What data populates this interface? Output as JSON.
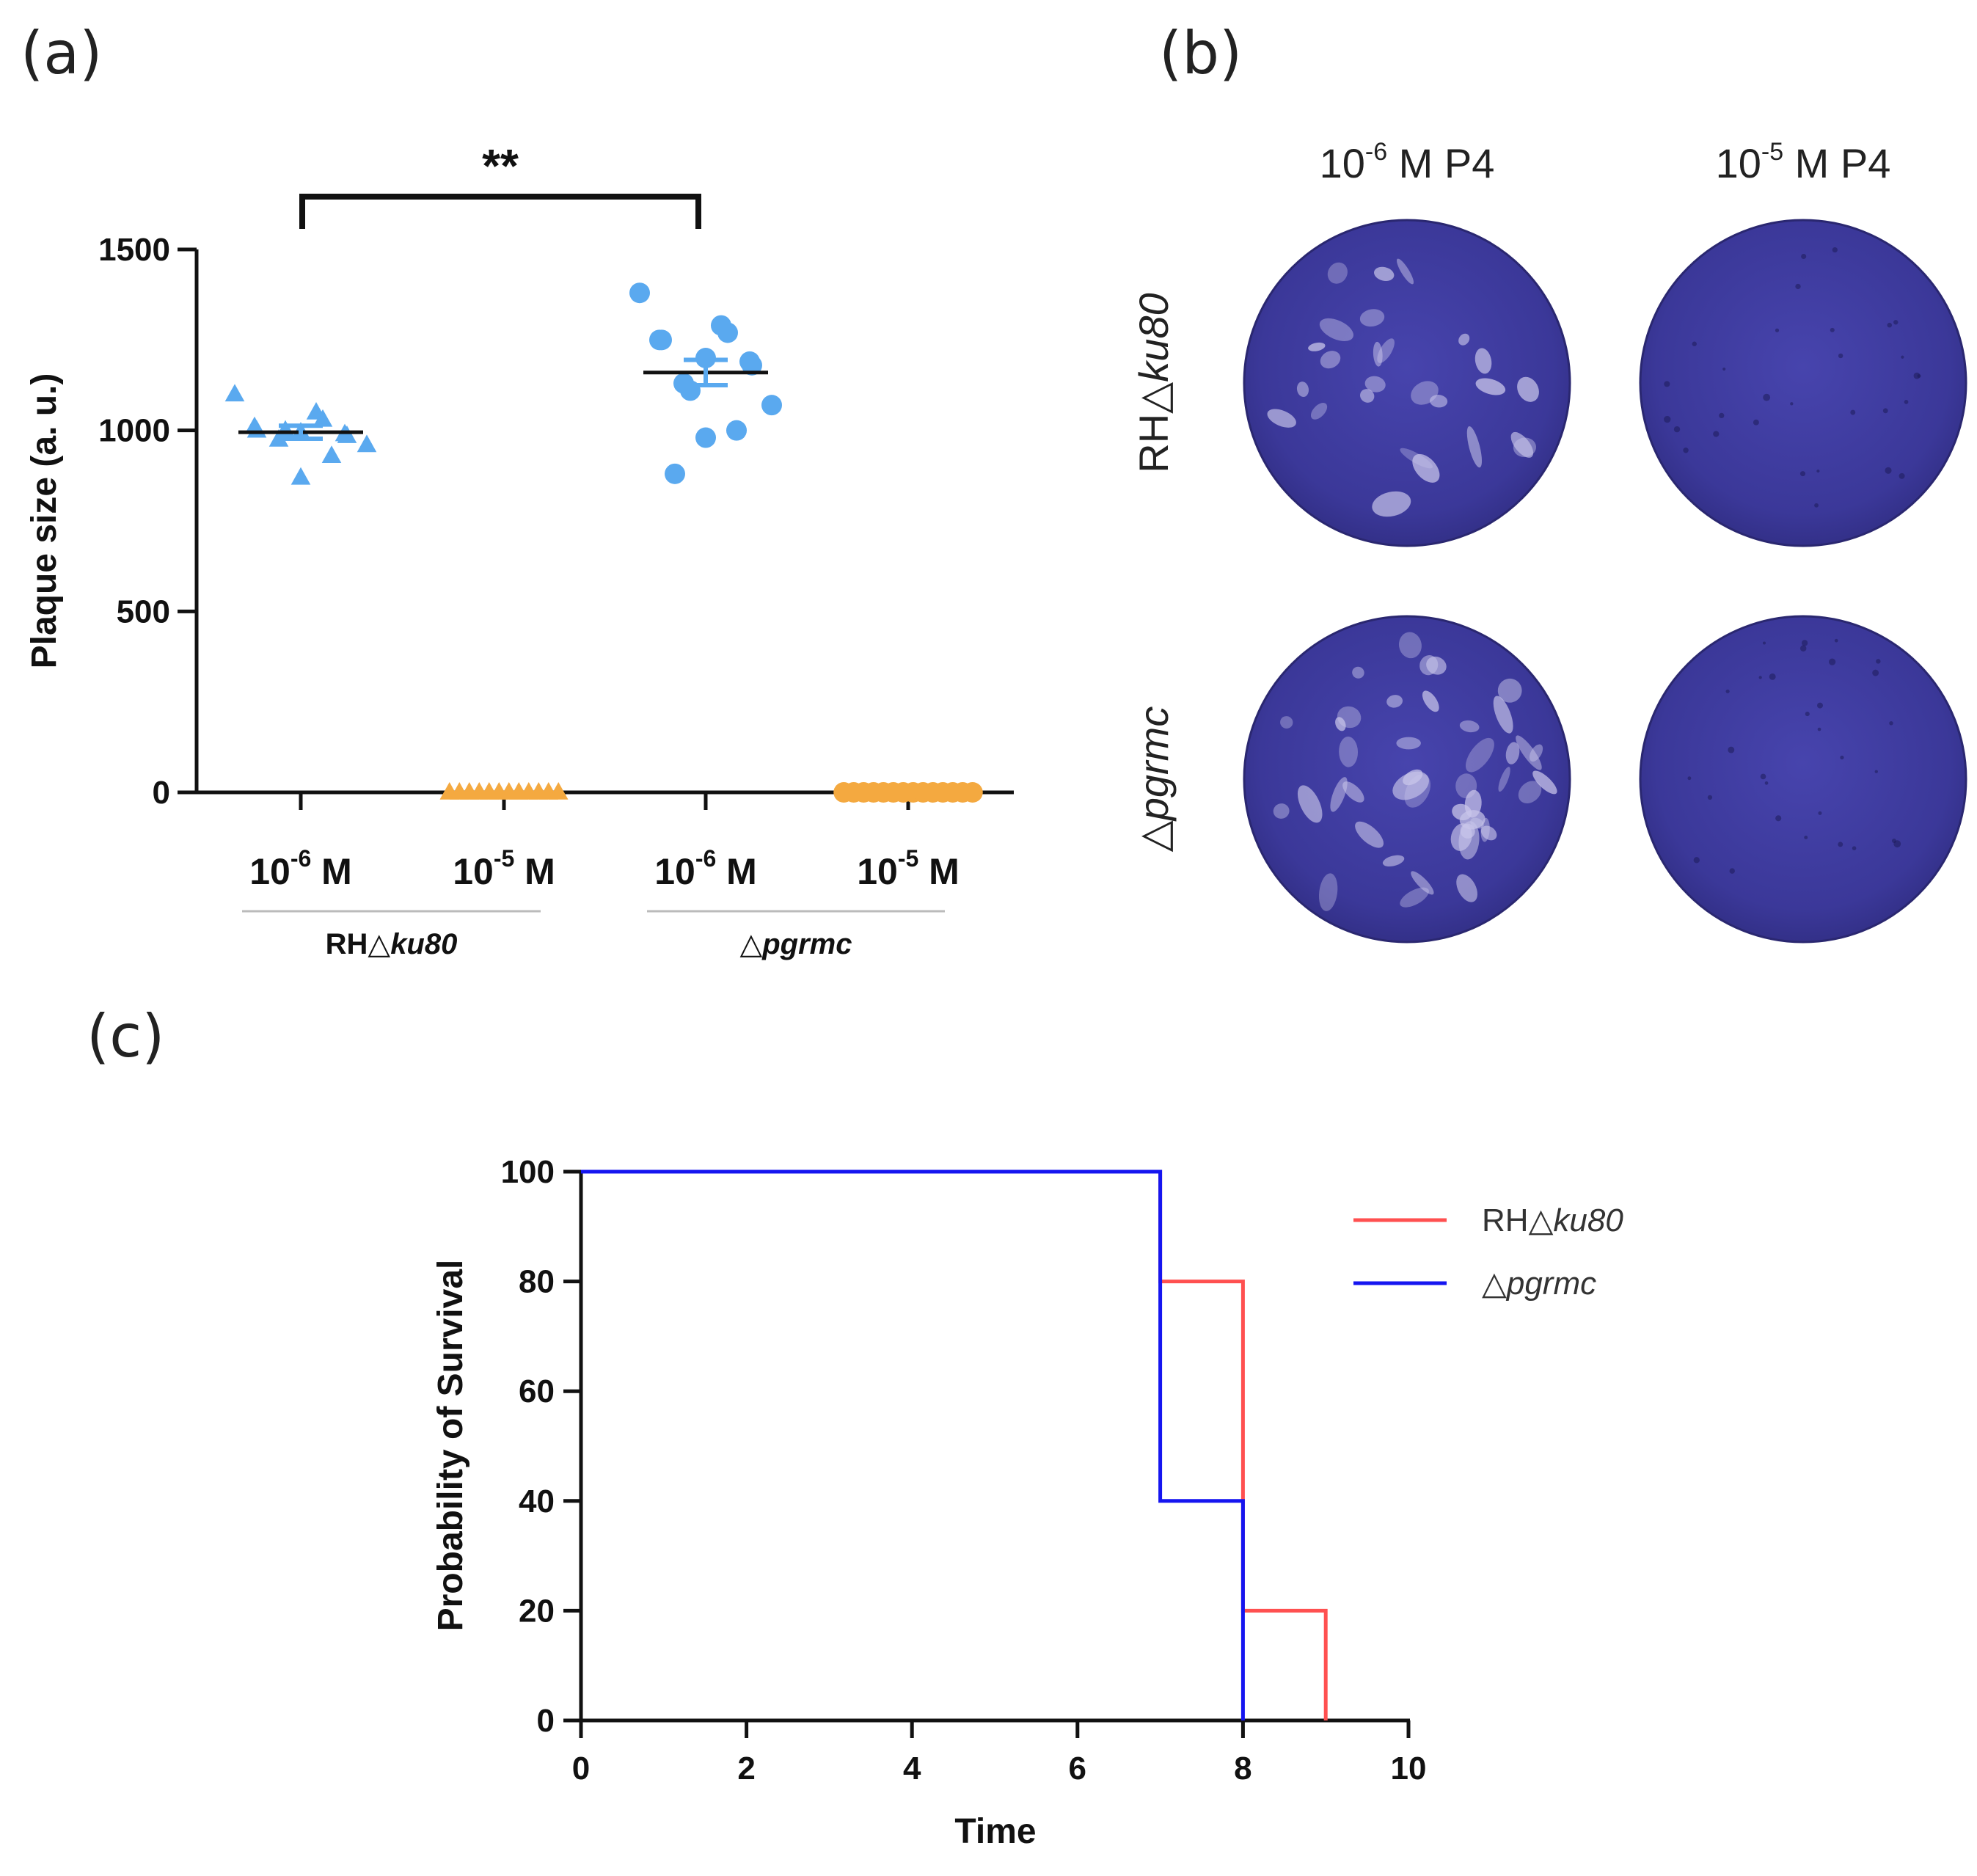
{
  "panels": {
    "a": "(a)",
    "b": "(b)",
    "c": "(c)"
  },
  "colors": {
    "blue_points": "#5aa9ef",
    "orange_points": "#f4a940",
    "rh_line": "#ff5050",
    "pgrmc_line": "#1515f0",
    "plate": "#3d3aa0"
  },
  "chart_data": [
    {
      "type": "scatter",
      "panel": "a",
      "ylabel": "Plaque size (a. u.)",
      "ylim": [
        0,
        1500
      ],
      "yticks": [
        0,
        500,
        1000,
        1500
      ],
      "categories": [
        {
          "base": "10",
          "exp": "-6",
          "unit": " M",
          "group": "RH△ku80"
        },
        {
          "base": "10",
          "exp": "-5",
          "unit": " M",
          "group": "RH△ku80"
        },
        {
          "base": "10",
          "exp": "-6",
          "unit": " M",
          "group": "△pgrmc"
        },
        {
          "base": "10",
          "exp": "-5",
          "unit": " M",
          "group": "△pgrmc"
        }
      ],
      "groups": [
        {
          "prefix": "RH",
          "delta": "△",
          "italic": "ku80",
          "categories": [
            0,
            1
          ]
        },
        {
          "prefix": "",
          "delta": "△",
          "italic": "pgrmc",
          "categories": [
            2,
            3
          ]
        }
      ],
      "series": [
        {
          "category": 0,
          "marker": "triangle",
          "color": "#5aa9ef",
          "values": [
            1100,
            1050,
            1030,
            1010,
            1000,
            995,
            990,
            985,
            975,
            1000,
            960,
            930,
            870
          ],
          "mean": 995,
          "sem": 18
        },
        {
          "category": 1,
          "marker": "triangle",
          "color": "#f4a940",
          "values": [
            0,
            0,
            0,
            0,
            0,
            0,
            0,
            0,
            0,
            0,
            0,
            0
          ],
          "mean": 0,
          "sem": 0
        },
        {
          "category": 2,
          "marker": "circle",
          "color": "#5aa9ef",
          "values": [
            1380,
            1290,
            1270,
            1250,
            1250,
            1200,
            1190,
            1180,
            1130,
            1110,
            1070,
            1000,
            980,
            880
          ],
          "mean": 1160,
          "sem": 35
        },
        {
          "category": 3,
          "marker": "circle",
          "color": "#f4a940",
          "values": [
            0,
            0,
            0,
            0,
            0,
            0,
            0,
            0,
            0,
            0,
            0,
            0,
            0,
            0
          ],
          "mean": 0,
          "sem": 0
        }
      ],
      "significance": {
        "from": 0,
        "to": 2,
        "label": "**"
      }
    },
    {
      "type": "image-grid",
      "panel": "b",
      "columns": [
        {
          "base": "10",
          "exp": "-6",
          "rest": " M P4"
        },
        {
          "base": "10",
          "exp": "-5",
          "rest": " M P4"
        }
      ],
      "rows": [
        {
          "prefix": "RH",
          "delta": "△",
          "italic": "ku80"
        },
        {
          "prefix": "",
          "delta": "△",
          "italic": "pgrmc"
        }
      ]
    },
    {
      "type": "line",
      "panel": "c",
      "xlabel": "Time",
      "ylabel": "Probability of Survival",
      "xlim": [
        0,
        10
      ],
      "ylim": [
        0,
        100
      ],
      "xticks": [
        0,
        2,
        4,
        6,
        8,
        10
      ],
      "yticks": [
        0,
        20,
        40,
        60,
        80,
        100
      ],
      "series": [
        {
          "name": "RH△ku80",
          "prefix": "RH",
          "delta": "△",
          "italic": "ku80",
          "color": "#ff5050",
          "steps": [
            [
              0,
              100
            ],
            [
              7,
              100
            ],
            [
              7,
              80
            ],
            [
              8,
              80
            ],
            [
              8,
              20
            ],
            [
              9,
              20
            ],
            [
              9,
              0
            ]
          ]
        },
        {
          "name": "△pgrmc",
          "prefix": "",
          "delta": "△",
          "italic": "pgrmc",
          "color": "#1515f0",
          "steps": [
            [
              0,
              100
            ],
            [
              7,
              100
            ],
            [
              7,
              40
            ],
            [
              8,
              40
            ],
            [
              8,
              0
            ]
          ]
        }
      ],
      "legend": "top-right"
    }
  ]
}
